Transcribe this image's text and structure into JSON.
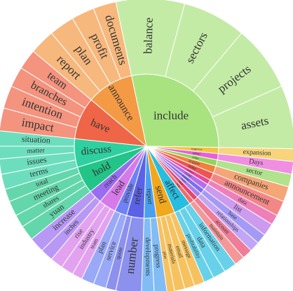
{
  "chart_data": {
    "type": "sunburst",
    "groups": [
      {
        "name": "include",
        "color": "#a9e37f",
        "children": [
          {
            "name": "balance",
            "value": 27
          },
          {
            "name": "sectors",
            "value": 25
          },
          {
            "name": "projects",
            "value": 26
          },
          {
            "name": "assets",
            "value": 25
          }
        ]
      },
      {
        "name": "improve",
        "color": "#f5c242",
        "children": [
          {
            "name": "expansion",
            "value": 5
          }
        ]
      },
      {
        "name": "spend",
        "color": "#e95fd6",
        "children": [
          {
            "name": "Days",
            "value": 5
          }
        ]
      },
      {
        "name": "enter",
        "color": "#8fd65a",
        "children": [
          {
            "name": "sector",
            "value": 5
          }
        ]
      },
      {
        "name": "acquire",
        "color": "#f0803c",
        "children": [
          {
            "name": "companies",
            "value": 6
          }
        ]
      },
      {
        "name": "make",
        "color": "#ee5454",
        "children": [
          {
            "name": "announcement",
            "value": 6
          }
        ]
      },
      {
        "name": "collect",
        "color": "#e8489a",
        "children": [
          {
            "name": "data",
            "value": 4
          }
        ]
      },
      {
        "name": "create",
        "color": "#b66ee8",
        "children": [
          {
            "name": "list",
            "value": 5
          }
        ]
      },
      {
        "name": "expand",
        "color": "#7d6ef0",
        "children": [
          {
            "name": "base",
            "value": 4
          }
        ]
      },
      {
        "name": "build",
        "color": "#a77ff2",
        "children": [
          {
            "name": "relationships",
            "value": 4
          }
        ]
      },
      {
        "name": "open",
        "color": "#e8456a",
        "children": [
          {
            "name": "account",
            "value": 4
          }
        ]
      },
      {
        "name": "help",
        "color": "#f26b6b",
        "children": [
          {
            "name": "maintain",
            "value": 4
          }
        ]
      },
      {
        "name": "affect",
        "color": "#26bde0",
        "children": [
          {
            "name": "information",
            "value": 5
          },
          {
            "name": "data",
            "value": 5
          },
          {
            "name": "profitability",
            "value": 4
          }
        ]
      },
      {
        "name": "send",
        "color": "#f2a81c",
        "children": [
          {
            "name": "message",
            "value": 4
          },
          {
            "name": "email",
            "value": 4
          },
          {
            "name": "materials",
            "value": 4
          },
          {
            "name": "plan",
            "value": 3
          }
        ]
      },
      {
        "name": "report",
        "color": "#4b9ff0",
        "children": [
          {
            "name": "progress",
            "value": 5
          },
          {
            "name": "developments",
            "value": 5
          }
        ]
      },
      {
        "name": "refer",
        "color": "#5b62e6",
        "children": [
          {
            "name": "number",
            "value": 10
          },
          {
            "name": "quote",
            "value": 4
          }
        ]
      },
      {
        "name": "provide",
        "color": "#6e82f5",
        "children": [
          {
            "name": "service",
            "value": 5
          },
          {
            "name": "plan",
            "value": 5
          }
        ]
      },
      {
        "name": "lead",
        "color": "#d67ae9",
        "children": [
          {
            "name": "team",
            "value": 4
          },
          {
            "name": "industry",
            "value": 5
          },
          {
            "name": "rise",
            "value": 5
          }
        ]
      },
      {
        "name": "reach",
        "color": "#9a6cf0",
        "children": [
          {
            "name": "inches",
            "value": 5
          },
          {
            "name": "increase",
            "value": 6
          }
        ]
      },
      {
        "name": "hold",
        "color": "#22c587",
        "children": [
          {
            "name": "yuan",
            "value": 6
          },
          {
            "name": "shares",
            "value": 5
          },
          {
            "name": "meeting",
            "value": 6
          },
          {
            "name": "total",
            "value": 5
          }
        ]
      },
      {
        "name": "discuss",
        "color": "#2fd0a0",
        "children": [
          {
            "name": "terms",
            "value": 6
          },
          {
            "name": "issues",
            "value": 6
          },
          {
            "name": "matter",
            "value": 5
          },
          {
            "name": "situation",
            "value": 6
          }
        ]
      },
      {
        "name": "have",
        "color": "#ef6547",
        "children": [
          {
            "name": "impact",
            "value": 9
          },
          {
            "name": "intention",
            "value": 9
          },
          {
            "name": "branches",
            "value": 8
          },
          {
            "name": "team",
            "value": 8
          }
        ]
      },
      {
        "name": "announce",
        "color": "#f49a45",
        "children": [
          {
            "name": "report",
            "value": 10
          },
          {
            "name": "plan",
            "value": 10
          },
          {
            "name": "profit",
            "value": 9
          },
          {
            "name": "documents",
            "value": 9
          }
        ]
      }
    ]
  }
}
